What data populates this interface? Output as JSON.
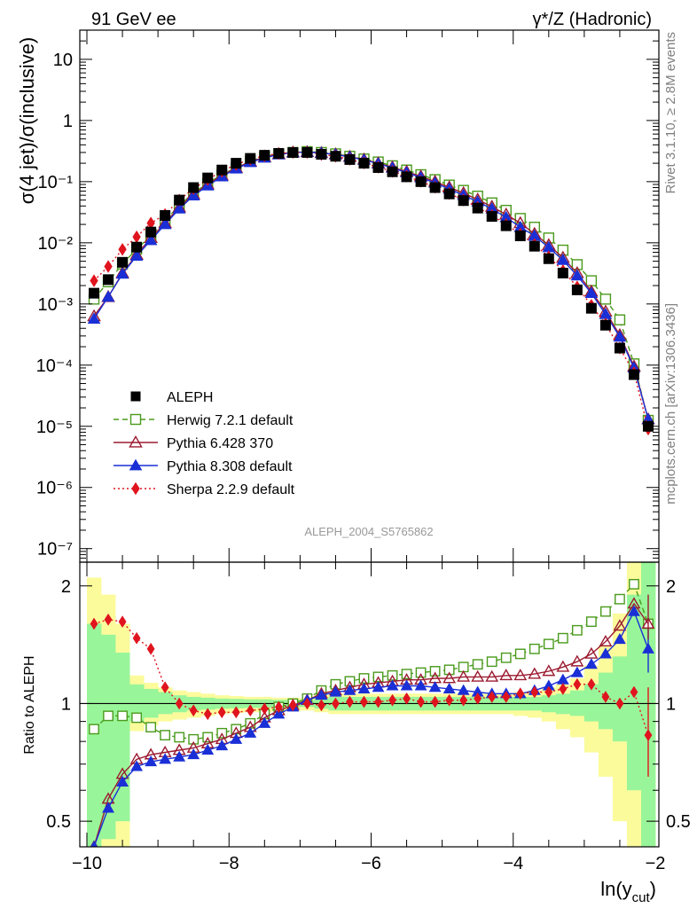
{
  "header": {
    "left": "91 GeV ee",
    "right": "γ*/Z (Hadronic)"
  },
  "side_texts": {
    "rivet": "Rivet 3.1.10, ≥ 2.8M events",
    "mcplots": "mcplots.cern.ch [arXiv:1306.3436]"
  },
  "analysis_label": "ALEPH_2004_S5765862",
  "colors": {
    "data": "#000000",
    "herwig": "#4a9a1c",
    "pythia6": "#9b1b30",
    "pythia8": "#1a2fd6",
    "sherpa": "#e0141e",
    "band_inner": "#99f599",
    "band_outer": "#fbfb9c"
  },
  "chart_data": [
    {
      "type": "line",
      "yscale": "log",
      "ylabel": "σ(4 jet)/σ(inclusive)",
      "xlim": [
        -10.1,
        -1.95
      ],
      "ylim": [
        6e-08,
        30
      ],
      "y_ticks": [
        {
          "v": 1e-07,
          "label": "10⁻⁷"
        },
        {
          "v": 1e-06,
          "label": "10⁻⁶"
        },
        {
          "v": 1e-05,
          "label": "10⁻⁵"
        },
        {
          "v": 0.0001,
          "label": "10⁻⁴"
        },
        {
          "v": 0.001,
          "label": "10⁻³"
        },
        {
          "v": 0.01,
          "label": "10⁻²"
        },
        {
          "v": 0.1,
          "label": "10⁻¹"
        },
        {
          "v": 1,
          "label": "1"
        },
        {
          "v": 10,
          "label": "10"
        }
      ],
      "legend_position": "bottom-left",
      "x": [
        -9.9,
        -9.7,
        -9.5,
        -9.3,
        -9.1,
        -8.9,
        -8.7,
        -8.5,
        -8.3,
        -8.1,
        -7.9,
        -7.7,
        -7.5,
        -7.3,
        -7.1,
        -6.9,
        -6.7,
        -6.5,
        -6.3,
        -6.1,
        -5.9,
        -5.7,
        -5.5,
        -5.3,
        -5.1,
        -4.9,
        -4.7,
        -4.5,
        -4.3,
        -4.1,
        -3.9,
        -3.7,
        -3.5,
        -3.3,
        -3.1,
        -2.9,
        -2.7,
        -2.5,
        -2.3,
        -2.1
      ],
      "series": [
        {
          "name": "ALEPH",
          "marker": "square",
          "line": "none",
          "key": "data",
          "values": [
            0.0015,
            0.0025,
            0.0048,
            0.0085,
            0.015,
            0.028,
            0.05,
            0.08,
            0.115,
            0.155,
            0.2,
            0.24,
            0.27,
            0.29,
            0.3,
            0.3,
            0.28,
            0.26,
            0.23,
            0.2,
            0.17,
            0.145,
            0.12,
            0.1,
            0.08,
            0.063,
            0.049,
            0.037,
            0.027,
            0.019,
            0.013,
            0.0088,
            0.0055,
            0.0032,
            0.0017,
            0.00085,
            0.00045,
            0.00019,
            7e-05,
            1e-05
          ]
        },
        {
          "name": "Herwig 7.2.1 default",
          "marker": "open-square",
          "line": "dashed",
          "key": "herwig",
          "values": [
            0.0012,
            0.0023,
            0.0045,
            0.0079,
            0.013,
            0.023,
            0.041,
            0.065,
            0.094,
            0.13,
            0.17,
            0.215,
            0.255,
            0.285,
            0.3,
            0.31,
            0.3,
            0.285,
            0.26,
            0.235,
            0.21,
            0.182,
            0.155,
            0.13,
            0.108,
            0.088,
            0.072,
            0.058,
            0.045,
            0.034,
            0.025,
            0.018,
            0.012,
            0.0076,
            0.0044,
            0.0024,
            0.0012,
            0.00055,
            0.000105,
            1.25e-05
          ]
        },
        {
          "name": "Pythia 6.428 370",
          "marker": "open-triangle",
          "line": "solid",
          "key": "pythia6",
          "values": [
            0.00063,
            0.0013,
            0.0032,
            0.0064,
            0.012,
            0.021,
            0.038,
            0.062,
            0.09,
            0.126,
            0.168,
            0.212,
            0.25,
            0.28,
            0.3,
            0.305,
            0.295,
            0.28,
            0.255,
            0.23,
            0.2,
            0.172,
            0.146,
            0.122,
            0.1,
            0.081,
            0.065,
            0.051,
            0.039,
            0.029,
            0.021,
            0.014,
            0.0092,
            0.0057,
            0.0032,
            0.0016,
            0.00075,
            0.00031,
            9.5e-05,
            1.3e-05
          ]
        },
        {
          "name": "Pythia 8.308 default",
          "marker": "triangle",
          "line": "solid",
          "key": "pythia8",
          "values": [
            0.00057,
            0.0013,
            0.0031,
            0.0061,
            0.011,
            0.02,
            0.036,
            0.059,
            0.086,
            0.121,
            0.163,
            0.207,
            0.245,
            0.277,
            0.298,
            0.305,
            0.295,
            0.278,
            0.253,
            0.226,
            0.197,
            0.168,
            0.141,
            0.117,
            0.095,
            0.076,
            0.06,
            0.047,
            0.036,
            0.026,
            0.018,
            0.013,
            0.0084,
            0.0052,
            0.0029,
            0.0015,
            0.00068,
            0.00029,
            9e-05,
            1.3e-05
          ]
        },
        {
          "name": "Sherpa 2.2.9 default",
          "marker": "diamond",
          "line": "dotted",
          "key": "sherpa",
          "values": [
            0.0024,
            0.0041,
            0.0078,
            0.0125,
            0.021,
            0.029,
            0.05,
            0.077,
            0.108,
            0.148,
            0.19,
            0.232,
            0.265,
            0.29,
            0.3,
            0.3,
            0.278,
            0.26,
            0.232,
            0.202,
            0.172,
            0.147,
            0.123,
            0.101,
            0.081,
            0.064,
            0.05,
            0.038,
            0.028,
            0.02,
            0.0139,
            0.0094,
            0.0059,
            0.0035,
            0.0019,
            0.00095,
            0.00047,
            0.00019,
            7.5e-05,
            9e-06
          ]
        }
      ]
    },
    {
      "type": "line",
      "yscale": "log",
      "ylabel": "Ratio to ALEPH",
      "xlabel": "ln(y_cut)",
      "xlim": [
        -10.1,
        -1.95
      ],
      "ylim": [
        0.43,
        2.3
      ],
      "x_ticks": [
        -10,
        -8,
        -6,
        -4,
        -2
      ],
      "y_ticks": [
        {
          "v": 0.5,
          "label": "0.5"
        },
        {
          "v": 1,
          "label": "1"
        },
        {
          "v": 2,
          "label": "2"
        }
      ],
      "reference_line": 1,
      "x": [
        -9.9,
        -9.7,
        -9.5,
        -9.3,
        -9.1,
        -8.9,
        -8.7,
        -8.5,
        -8.3,
        -8.1,
        -7.9,
        -7.7,
        -7.5,
        -7.3,
        -7.1,
        -6.9,
        -6.7,
        -6.5,
        -6.3,
        -6.1,
        -5.9,
        -5.7,
        -5.5,
        -5.3,
        -5.1,
        -4.9,
        -4.7,
        -4.5,
        -4.3,
        -4.1,
        -3.9,
        -3.7,
        -3.5,
        -3.3,
        -3.1,
        -2.9,
        -2.7,
        -2.5,
        -2.3,
        -2.1
      ],
      "bands": {
        "inner_lo": [
          0.43,
          0.45,
          0.5,
          0.9,
          0.92,
          0.94,
          0.95,
          0.96,
          0.965,
          0.97,
          0.972,
          0.975,
          0.975,
          0.978,
          0.978,
          0.98,
          0.97,
          0.96,
          0.96,
          0.96,
          0.96,
          0.96,
          0.96,
          0.96,
          0.96,
          0.96,
          0.96,
          0.96,
          0.96,
          0.96,
          0.96,
          0.96,
          0.95,
          0.94,
          0.93,
          0.9,
          0.86,
          0.8,
          0.6,
          0.43
        ],
        "inner_hi": [
          1.6,
          1.5,
          1.35,
          1.12,
          1.09,
          1.07,
          1.05,
          1.04,
          1.035,
          1.03,
          1.028,
          1.025,
          1.025,
          1.022,
          1.022,
          1.02,
          1.03,
          1.04,
          1.04,
          1.04,
          1.04,
          1.04,
          1.04,
          1.04,
          1.04,
          1.04,
          1.04,
          1.04,
          1.04,
          1.04,
          1.04,
          1.04,
          1.05,
          1.06,
          1.08,
          1.12,
          1.2,
          1.32,
          1.9,
          2.3
        ],
        "outer_lo": [
          0.43,
          0.43,
          0.43,
          0.85,
          0.88,
          0.9,
          0.91,
          0.92,
          0.93,
          0.94,
          0.945,
          0.95,
          0.95,
          0.955,
          0.955,
          0.96,
          0.95,
          0.94,
          0.94,
          0.94,
          0.94,
          0.94,
          0.94,
          0.94,
          0.94,
          0.94,
          0.94,
          0.94,
          0.94,
          0.94,
          0.93,
          0.92,
          0.9,
          0.86,
          0.82,
          0.75,
          0.65,
          0.5,
          0.43,
          0.43
        ],
        "outer_hi": [
          2.1,
          1.9,
          1.6,
          1.18,
          1.13,
          1.1,
          1.08,
          1.07,
          1.06,
          1.05,
          1.045,
          1.04,
          1.04,
          1.035,
          1.035,
          1.03,
          1.05,
          1.06,
          1.06,
          1.06,
          1.06,
          1.06,
          1.06,
          1.06,
          1.06,
          1.06,
          1.06,
          1.06,
          1.06,
          1.06,
          1.07,
          1.08,
          1.1,
          1.12,
          1.16,
          1.25,
          1.4,
          1.7,
          2.3,
          2.3
        ]
      },
      "series": [
        {
          "name": "Herwig 7.2.1 default",
          "key": "herwig",
          "marker": "open-square",
          "line": "dashed",
          "values": [
            0.86,
            0.93,
            0.93,
            0.92,
            0.87,
            0.83,
            0.82,
            0.81,
            0.82,
            0.84,
            0.86,
            0.89,
            0.94,
            0.98,
            1.0,
            1.03,
            1.08,
            1.12,
            1.14,
            1.16,
            1.17,
            1.18,
            1.19,
            1.2,
            1.21,
            1.22,
            1.24,
            1.26,
            1.28,
            1.31,
            1.34,
            1.38,
            1.42,
            1.47,
            1.54,
            1.62,
            1.72,
            1.85,
            2.02,
            1.6
          ]
        },
        {
          "name": "Pythia 6.428 370",
          "key": "pythia6",
          "marker": "open-triangle",
          "line": "solid",
          "values": [
            0.42,
            0.57,
            0.66,
            0.72,
            0.74,
            0.75,
            0.76,
            0.77,
            0.79,
            0.81,
            0.84,
            0.87,
            0.92,
            0.96,
            0.99,
            1.02,
            1.06,
            1.08,
            1.1,
            1.12,
            1.13,
            1.14,
            1.15,
            1.15,
            1.16,
            1.16,
            1.17,
            1.17,
            1.17,
            1.18,
            1.18,
            1.19,
            1.21,
            1.24,
            1.28,
            1.34,
            1.44,
            1.58,
            1.8,
            1.6
          ]
        },
        {
          "name": "Pythia 8.308 default",
          "key": "pythia8",
          "marker": "triangle",
          "line": "solid",
          "values": [
            0.38,
            0.54,
            0.63,
            0.69,
            0.71,
            0.72,
            0.73,
            0.74,
            0.76,
            0.78,
            0.81,
            0.84,
            0.89,
            0.94,
            0.98,
            1.02,
            1.05,
            1.07,
            1.08,
            1.09,
            1.1,
            1.11,
            1.11,
            1.11,
            1.1,
            1.09,
            1.08,
            1.07,
            1.06,
            1.06,
            1.06,
            1.08,
            1.11,
            1.15,
            1.2,
            1.26,
            1.34,
            1.46,
            1.72,
            1.38
          ]
        },
        {
          "name": "Sherpa 2.2.9 default",
          "key": "sherpa",
          "marker": "diamond",
          "line": "dotted",
          "values": [
            1.6,
            1.64,
            1.62,
            1.47,
            1.38,
            1.1,
            1.0,
            0.96,
            0.94,
            0.95,
            0.95,
            0.96,
            0.97,
            0.98,
            0.99,
            1.0,
            0.99,
            1.0,
            1.01,
            1.01,
            1.01,
            1.02,
            1.03,
            1.01,
            1.01,
            1.02,
            1.02,
            1.03,
            1.04,
            1.04,
            1.06,
            1.07,
            1.07,
            1.09,
            1.12,
            1.12,
            1.04,
            1.0,
            1.07,
            0.83
          ]
        }
      ],
      "endpoint_extras": [
        {
          "x": -2.3,
          "key": "pythia8",
          "y": 1.38
        },
        {
          "x": -2.1,
          "key": "pythia8",
          "y": 1.38,
          "ylo": 1.2,
          "yhi": 1.55
        },
        {
          "x": -2.3,
          "key": "herwig",
          "y": 1.6
        },
        {
          "x": -2.1,
          "key": "pythia6",
          "y": 1.66,
          "ylo": 1.46,
          "yhi": 1.9
        },
        {
          "x": -2.3,
          "key": "sherpa",
          "y": 1.5
        },
        {
          "x": -2.1,
          "key": "sherpa",
          "y": 0.83,
          "ylo": 0.65,
          "yhi": 1.1
        }
      ]
    }
  ]
}
